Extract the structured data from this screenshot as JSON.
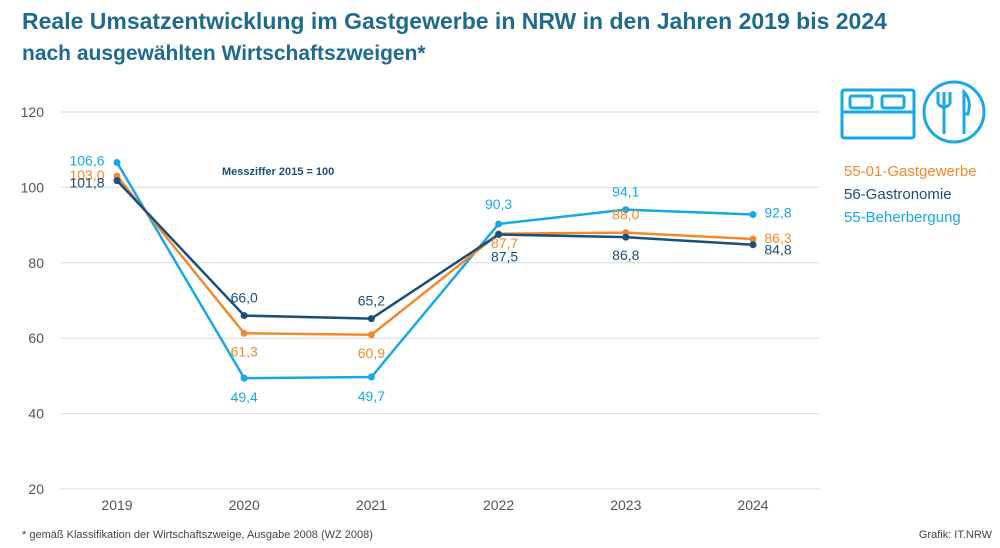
{
  "title": "Reale Umsatzentwicklung im Gastgewerbe in NRW in den Jahren 2019 bis 2024",
  "subtitle": "nach ausgewählten Wirtschaftszweigen*",
  "footnote": "*  gemäß Klassifikation der Wirtschaftszweige, Ausgabe 2008 (WZ 2008)",
  "source": "Grafik: IT.NRW",
  "icons": [
    "bed-icon",
    "cutlery-icon"
  ],
  "colors": {
    "gastgewerbe": "#f08a2c",
    "gastronomie": "#1b4f7a",
    "beherbergung": "#1aa7e6",
    "grid": "#d9d9d9",
    "axis_text": "#555555",
    "title": "#1f6b8f"
  },
  "chart_data": {
    "type": "line",
    "annotation": "Messziffer 2015 = 100",
    "categories": [
      "2019",
      "2020",
      "2021",
      "2022",
      "2023",
      "2024"
    ],
    "ylim": [
      20,
      120
    ],
    "yticks": [
      "20",
      "40",
      "60",
      "80",
      "100",
      "120"
    ],
    "grid": true,
    "legend_position": "right",
    "series": [
      {
        "key": "beherbergung",
        "name": "55-Beherbergung",
        "color": "#1aa7e6",
        "values": [
          106.6,
          49.4,
          49.7,
          90.3,
          94.1,
          92.8
        ],
        "labels": [
          "106,6",
          "49,4",
          "49,7",
          "90,3",
          "94,1",
          "92,8"
        ]
      },
      {
        "key": "gastgewerbe",
        "name": "55-01-Gastgewerbe",
        "color": "#f08a2c",
        "values": [
          103.0,
          61.3,
          60.9,
          87.7,
          88.0,
          86.3
        ],
        "labels": [
          "103,0",
          "61,3",
          "60,9",
          "87,7",
          "88,0",
          "86,3"
        ]
      },
      {
        "key": "gastronomie",
        "name": "56-Gastronomie",
        "color": "#1b4f7a",
        "values": [
          101.8,
          66.0,
          65.2,
          87.5,
          86.8,
          84.8
        ],
        "labels": [
          "101,8",
          "66,0",
          "65,2",
          "87,5",
          "86,8",
          "84,8"
        ]
      }
    ]
  }
}
